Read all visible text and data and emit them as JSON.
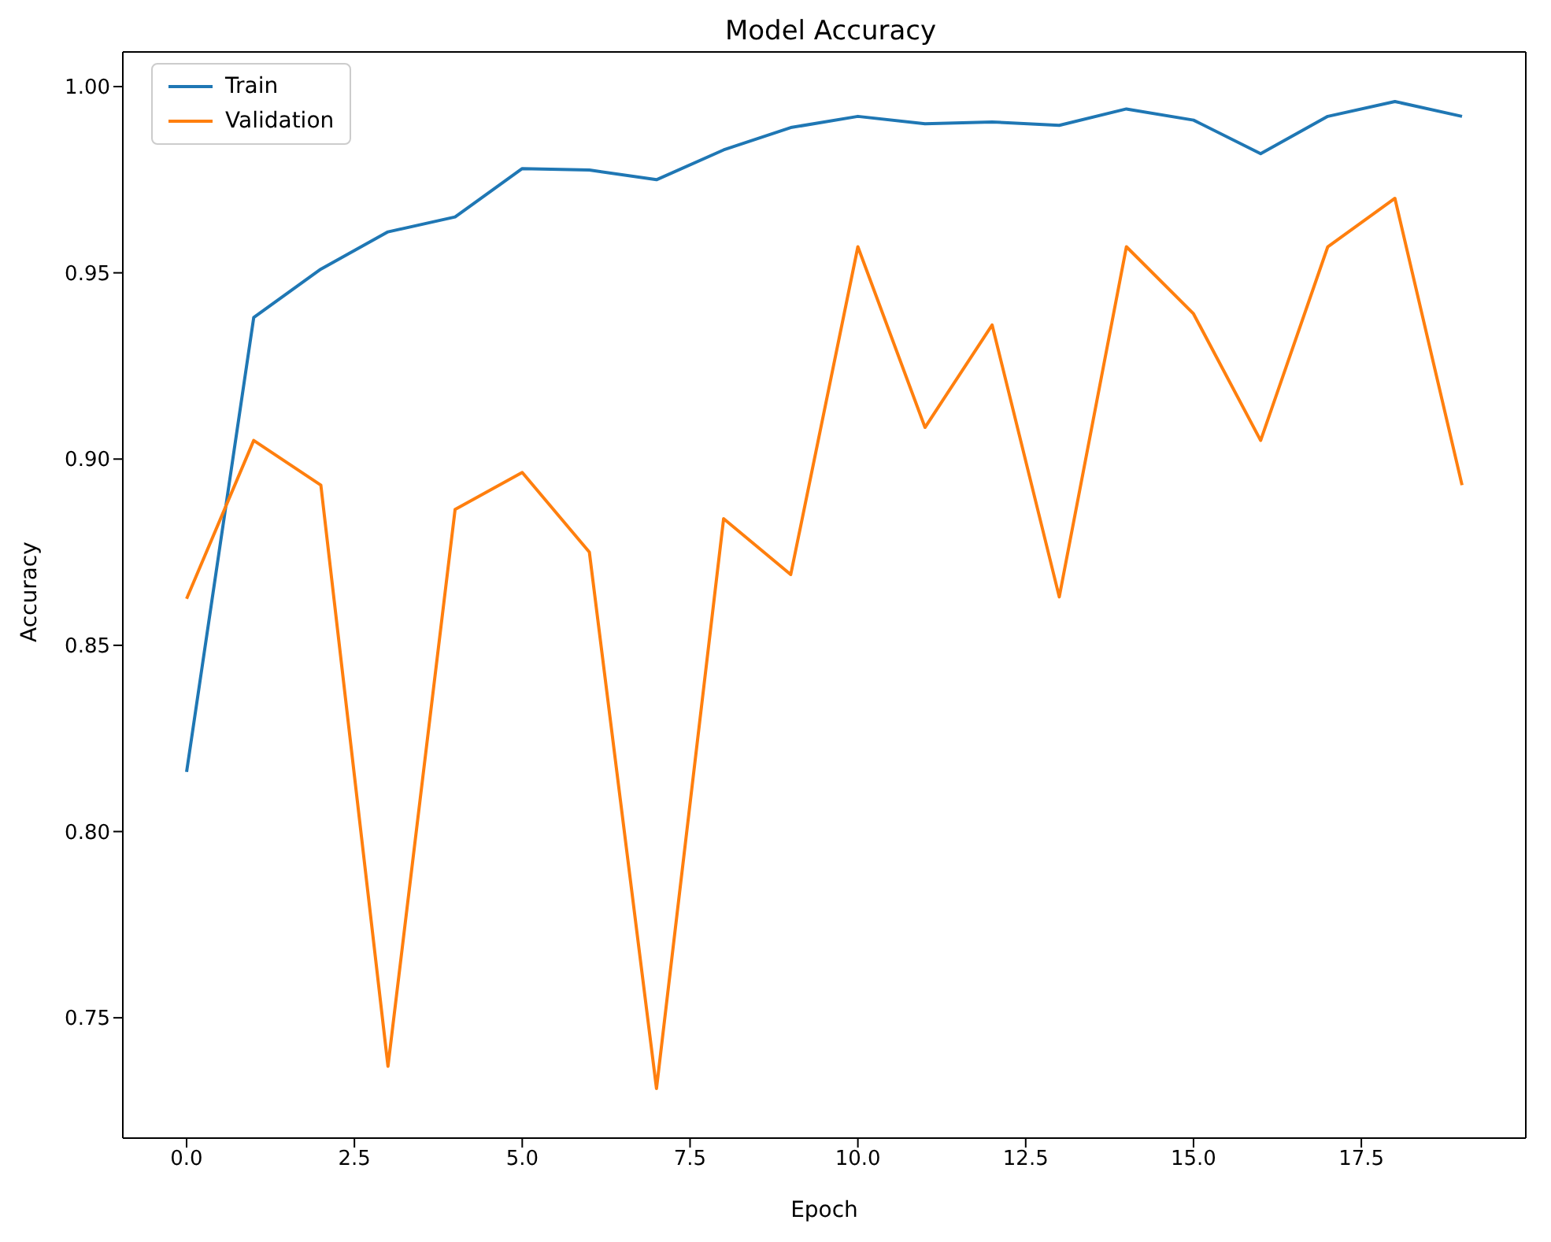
{
  "chart_data": {
    "type": "line",
    "title": "Model Accuracy",
    "xlabel": "Epoch",
    "ylabel": "Accuracy",
    "x": [
      0,
      1,
      2,
      3,
      4,
      5,
      6,
      7,
      8,
      9,
      10,
      11,
      12,
      13,
      14,
      15,
      16,
      17,
      18,
      19
    ],
    "series": [
      {
        "name": "Train",
        "color": "#1f77b4",
        "values": [
          0.816,
          0.938,
          0.951,
          0.961,
          0.965,
          0.978,
          0.9776,
          0.975,
          0.983,
          0.989,
          0.992,
          0.99,
          0.9905,
          0.9896,
          0.994,
          0.991,
          0.982,
          0.992,
          0.996,
          0.992
        ]
      },
      {
        "name": "Validation",
        "color": "#ff7f0e",
        "values": [
          0.8625,
          0.905,
          0.893,
          0.737,
          0.8865,
          0.8964,
          0.875,
          0.731,
          0.884,
          0.869,
          0.957,
          0.9085,
          0.936,
          0.863,
          0.957,
          0.939,
          0.905,
          0.957,
          0.97,
          0.893
        ]
      }
    ],
    "xlim": [
      -0.95,
      19.95
    ],
    "xticks": [
      {
        "value": 0,
        "label": "0.0"
      },
      {
        "value": 2.5,
        "label": "2.5"
      },
      {
        "value": 5,
        "label": "5.0"
      },
      {
        "value": 7.5,
        "label": "7.5"
      },
      {
        "value": 10,
        "label": "10.0"
      },
      {
        "value": 12.5,
        "label": "12.5"
      },
      {
        "value": 15,
        "label": "15.0"
      },
      {
        "value": 17.5,
        "label": "17.5"
      }
    ],
    "ylim": [
      0.7177,
      1.0093
    ],
    "yticks": [
      {
        "value": 0.75,
        "label": "0.75"
      },
      {
        "value": 0.8,
        "label": "0.80"
      },
      {
        "value": 0.85,
        "label": "0.85"
      },
      {
        "value": 0.9,
        "label": "0.90"
      },
      {
        "value": 0.95,
        "label": "0.95"
      },
      {
        "value": 1.0,
        "label": "1.00"
      }
    ],
    "legend": "top left",
    "marker": "none",
    "line_style": "solid",
    "grid": false
  }
}
